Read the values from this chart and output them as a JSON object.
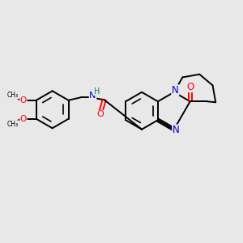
{
  "background_color": "#e8e8e8",
  "bond_color": "#000000",
  "atom_colors": {
    "O": "#ff0000",
    "N": "#0000cd",
    "H": "#008080",
    "C": "#000000"
  },
  "figsize": [
    3.0,
    3.0
  ],
  "dpi": 100
}
